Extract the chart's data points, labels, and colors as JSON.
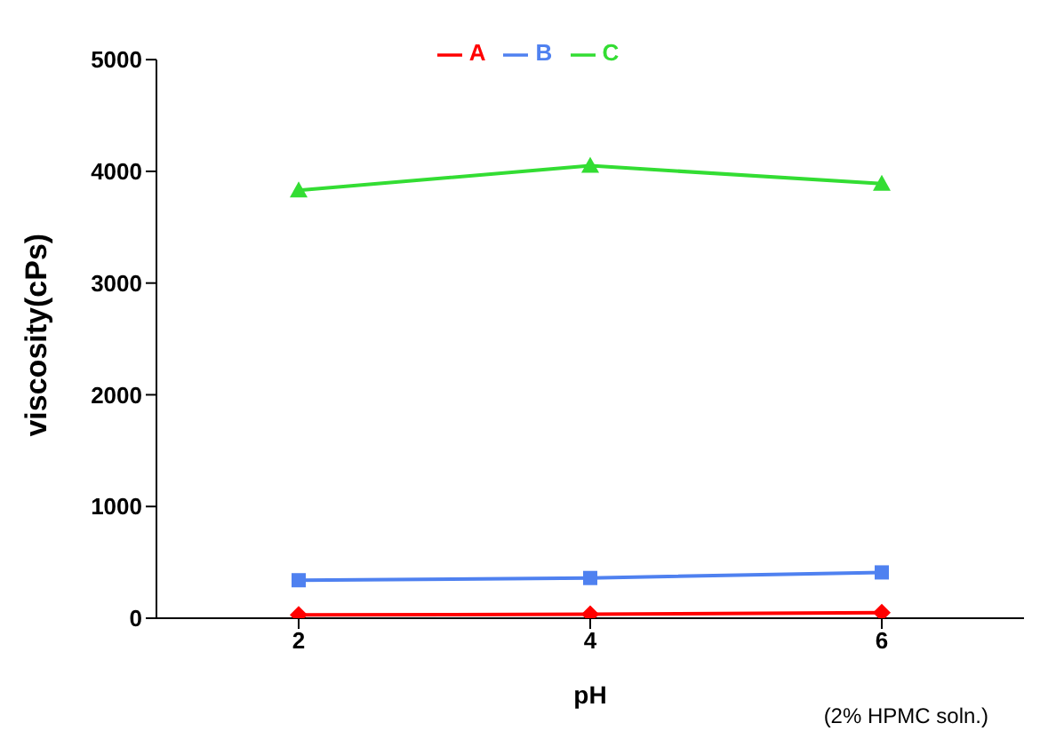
{
  "chart_data": {
    "type": "line",
    "xlabel": "pH",
    "ylabel": "viscosity(cPs)",
    "categories": [
      "2",
      "4",
      "6"
    ],
    "series": [
      {
        "name": "A",
        "color": "#ff0000",
        "marker": "diamond",
        "values": [
          30,
          35,
          50
        ]
      },
      {
        "name": "B",
        "color": "#4f81f0",
        "marker": "square",
        "values": [
          340,
          360,
          410
        ]
      },
      {
        "name": "C",
        "color": "#33dd33",
        "marker": "triangle",
        "values": [
          3830,
          4050,
          3890
        ]
      }
    ],
    "ylim": [
      0,
      5000
    ],
    "yticks": [
      0,
      1000,
      2000,
      3000,
      4000,
      5000
    ],
    "grid": false,
    "legend": "top",
    "annotations": [
      "(2% HPMC soln.)"
    ]
  }
}
